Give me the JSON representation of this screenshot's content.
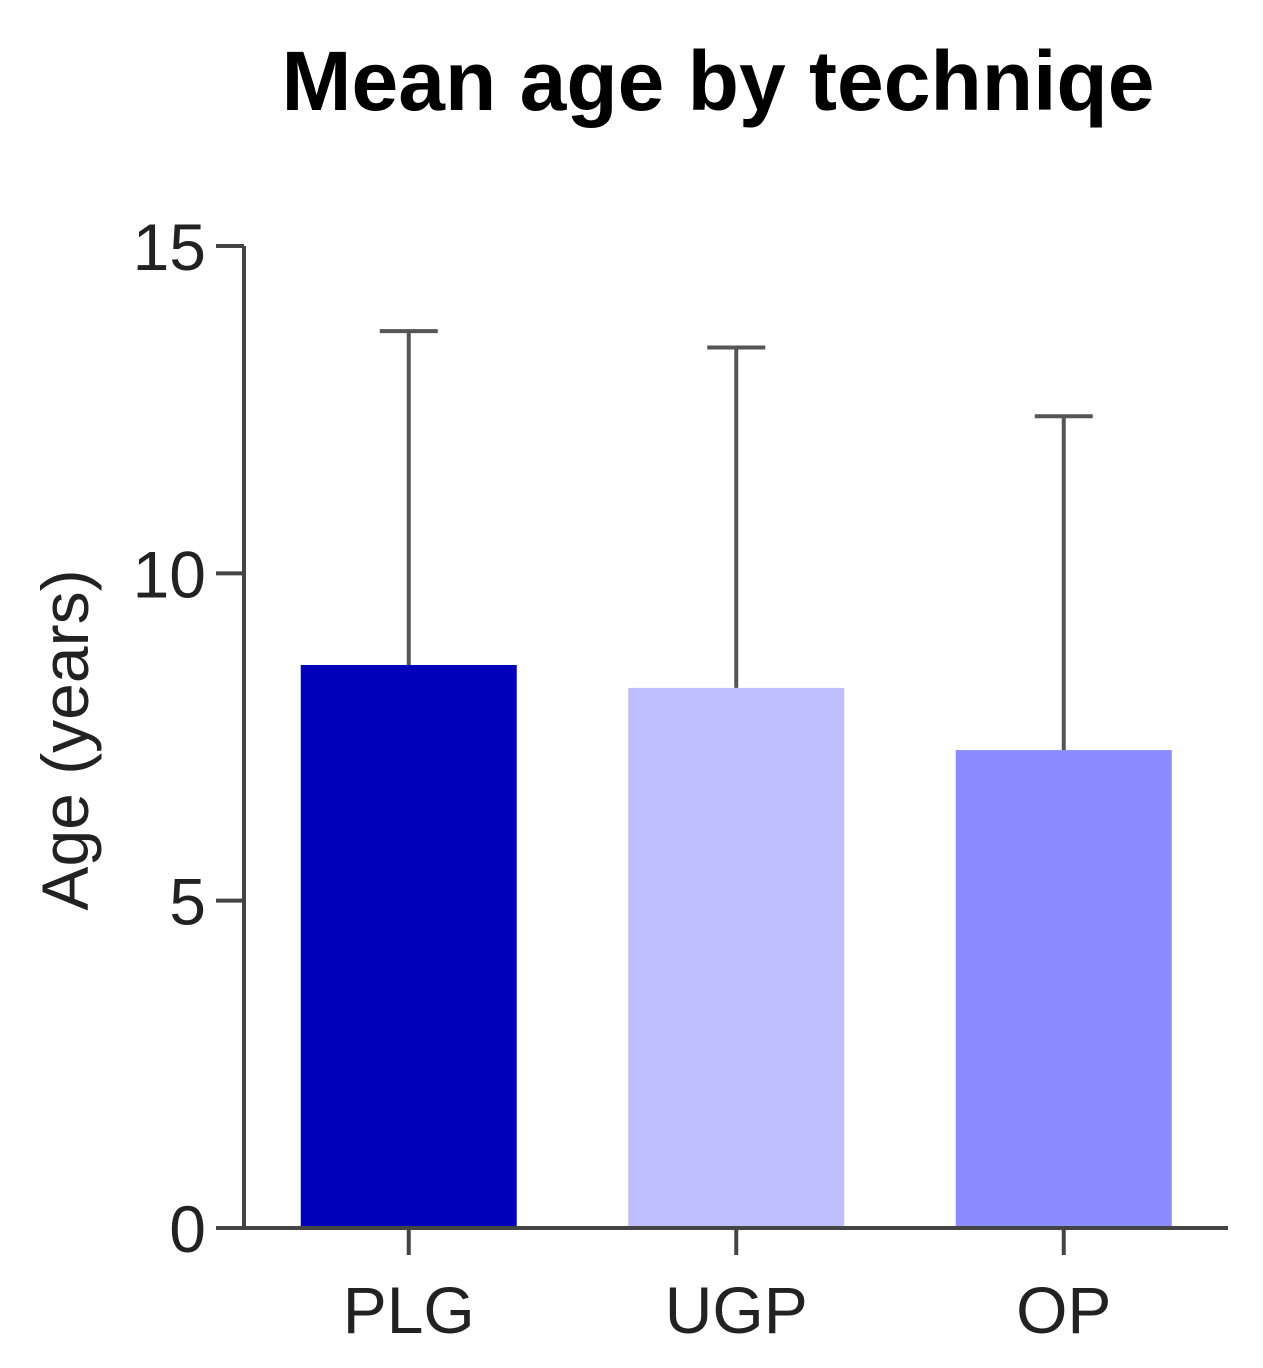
{
  "chart_data": {
    "type": "bar",
    "title": "Mean age by techniqe",
    "xlabel": "",
    "ylabel": "Age (years)",
    "categories": [
      "PLG",
      "UGP",
      "OP"
    ],
    "values": [
      8.6,
      8.25,
      7.3
    ],
    "error_upper": [
      13.7,
      13.45,
      12.4
    ],
    "colors": [
      "#0000bb",
      "#bfbfff",
      "#8c8cff"
    ],
    "ylim": [
      0,
      15
    ],
    "yticks": [
      0,
      5,
      10,
      15
    ],
    "ytick_labels": [
      "0",
      "5",
      "10",
      "15"
    ],
    "grid": false,
    "legend": "none"
  }
}
